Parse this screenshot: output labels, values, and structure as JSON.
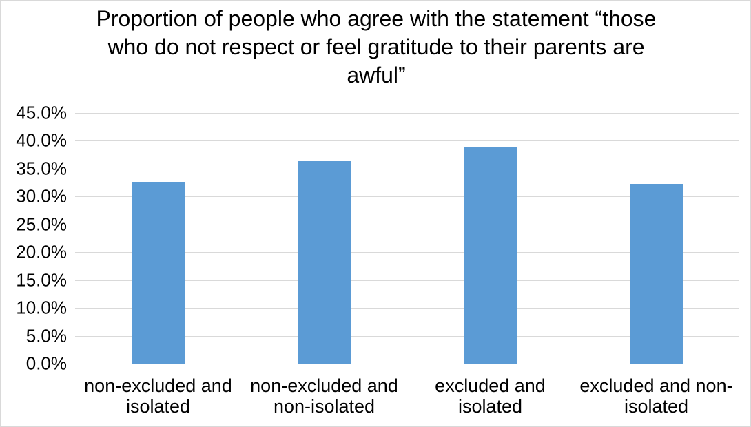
{
  "chart_data": {
    "type": "bar",
    "title": "Proportion of people who agree with the statement “those who do not respect or feel gratitude to their parents are awful”",
    "categories": [
      "non-excluded and isolated",
      "non-excluded and non-isolated",
      "excluded and isolated",
      "excluded and non-isolated"
    ],
    "values": [
      32.7,
      36.4,
      38.8,
      32.3
    ],
    "unit": "%",
    "xlabel": "",
    "ylabel": "",
    "ylim": [
      0,
      45
    ],
    "ytick_step": 5,
    "ytick_labels": [
      "45.0%",
      "40.0%",
      "35.0%",
      "30.0%",
      "25.0%",
      "20.0%",
      "15.0%",
      "10.0%",
      "5.0%",
      "0.0%"
    ],
    "grid": true,
    "legend": "none",
    "colors": {
      "bar": "#5B9BD5",
      "gridline": "#D9D9D9",
      "axis_line": "#D0D0D0",
      "text": "#000000",
      "background": "#FFFFFF",
      "chart_border": "#D9D9D9"
    }
  }
}
